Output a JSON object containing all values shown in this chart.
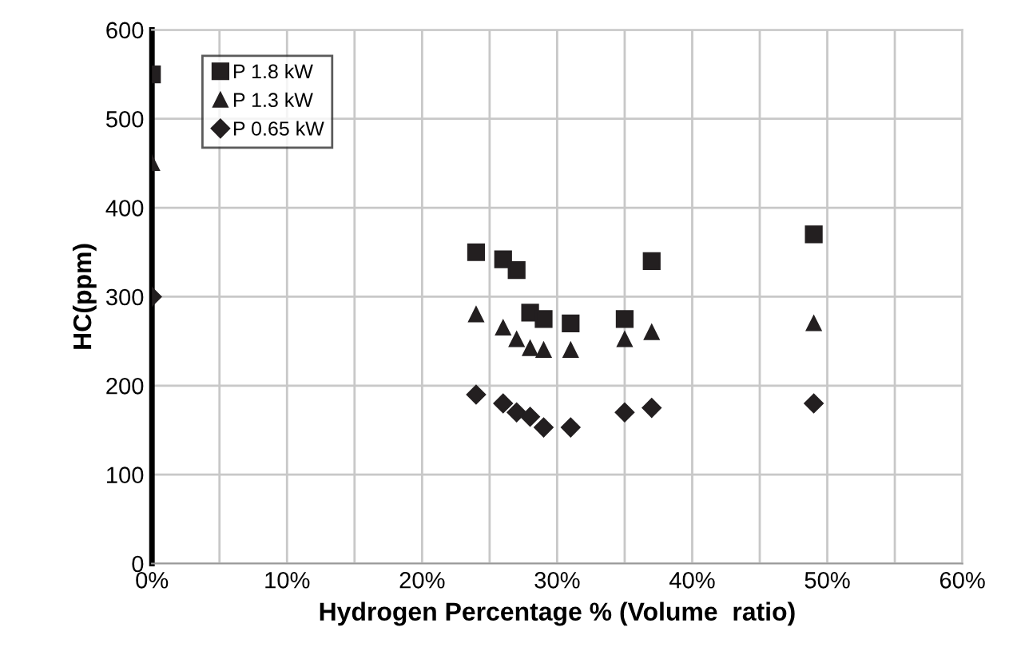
{
  "chart_data": {
    "type": "scatter",
    "xlabel": "Hydrogen Percentage % (Volume  ratio)",
    "ylabel": "HC(ppm)",
    "x": [
      0,
      24,
      26,
      27,
      28,
      29,
      31,
      35,
      37,
      49
    ],
    "series": [
      {
        "name": "P 1.8 kW",
        "color": "#231f20",
        "marker": "square",
        "values": [
          550,
          350,
          342,
          330,
          282,
          275,
          270,
          275,
          340,
          370
        ]
      },
      {
        "name": "P 1.3 kW",
        "color": "#231f20",
        "marker": "triangle",
        "values": [
          450,
          280,
          265,
          252,
          242,
          240,
          240,
          252,
          260,
          270
        ]
      },
      {
        "name": "P 0.65 kW",
        "color": "#231f20",
        "marker": "diamond",
        "values": [
          300,
          190,
          180,
          170,
          165,
          153,
          153,
          170,
          175,
          180
        ]
      }
    ],
    "xlim": [
      0,
      60
    ],
    "ylim": [
      0,
      600
    ],
    "xticks": [
      {
        "value": 0,
        "label": "0%"
      },
      {
        "value": 5,
        "label": null
      },
      {
        "value": 10,
        "label": "10%"
      },
      {
        "value": 15,
        "label": null
      },
      {
        "value": 20,
        "label": "20%"
      },
      {
        "value": 25,
        "label": null
      },
      {
        "value": 30,
        "label": "30%"
      },
      {
        "value": 35,
        "label": null
      },
      {
        "value": 40,
        "label": "40%"
      },
      {
        "value": 45,
        "label": null
      },
      {
        "value": 50,
        "label": "50%"
      },
      {
        "value": 55,
        "label": null
      },
      {
        "value": 60,
        "label": "60%"
      }
    ],
    "yticks": [
      0,
      100,
      200,
      300,
      400,
      500,
      600
    ],
    "grid": true,
    "legend": "top left"
  }
}
